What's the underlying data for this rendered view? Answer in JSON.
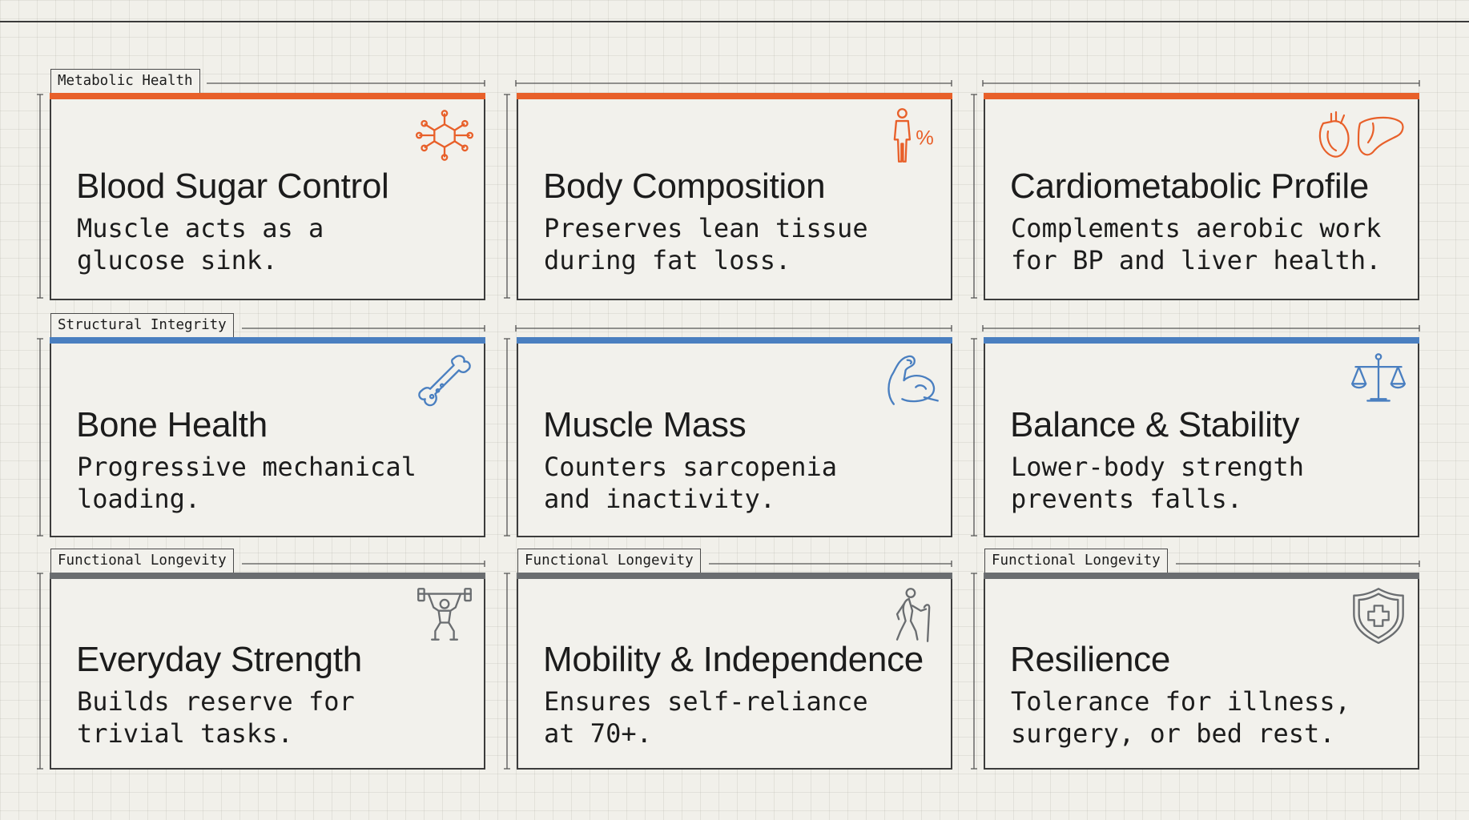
{
  "colors": {
    "metabolic": "#e8602a",
    "structural": "#4a7fc0",
    "functional": "#6a6d70",
    "border": "#3c3c3c",
    "background": "#f1f0ea"
  },
  "cards": [
    {
      "tag": "Metabolic Health",
      "title": "Blood Sugar Control",
      "desc": "Muscle acts as a\nglucose sink.",
      "icon": "molecule-network-icon"
    },
    {
      "tag": "",
      "title": "Body Composition",
      "desc": "Preserves lean tissue\nduring fat loss.",
      "icon": "body-fat-percentage-icon",
      "icon_label": "%"
    },
    {
      "tag": "",
      "title": "Cardiometabolic Profile",
      "desc": "Complements aerobic work\nfor BP and liver health.",
      "icon": "heart-and-liver-icon"
    },
    {
      "tag": "Structural Integrity",
      "title": "Bone Health",
      "desc": "Progressive mechanical\nloading.",
      "icon": "bone-icon"
    },
    {
      "tag": "",
      "title": "Muscle Mass",
      "desc": "Counters sarcopenia\nand inactivity.",
      "icon": "flexed-bicep-icon"
    },
    {
      "tag": "",
      "title": "Balance & Stability",
      "desc": "Lower-body strength\nprevents falls.",
      "icon": "balance-scale-icon"
    },
    {
      "tag": "Functional Longevity",
      "title": "Everyday Strength",
      "desc": "Builds reserve for\ntrivial tasks.",
      "icon": "weightlifter-icon"
    },
    {
      "tag": "Functional Longevity",
      "title": "Mobility & Independence",
      "desc": "Ensures self-reliance\nat 70+.",
      "icon": "walking-with-cane-icon"
    },
    {
      "tag": "Functional Longevity",
      "title": "Resilience",
      "desc": "Tolerance for illness,\nsurgery, or bed rest.",
      "icon": "shield-cross-icon"
    }
  ]
}
